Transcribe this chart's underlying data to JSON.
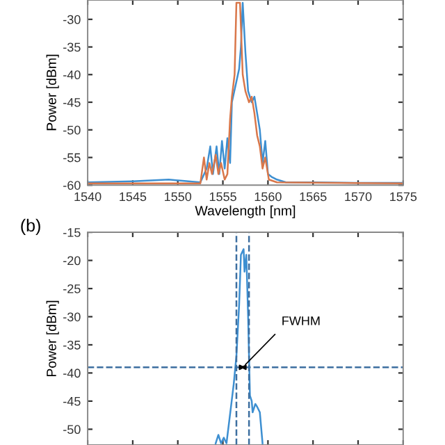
{
  "chart_data": [
    {
      "type": "line",
      "xlabel": "Wavelength [nm]",
      "ylabel": "Power [dBm]",
      "xlim": [
        1540,
        1575
      ],
      "ylim": [
        -60,
        -26.5
      ],
      "xticks": [
        1540,
        1545,
        1550,
        1555,
        1560,
        1565,
        1570,
        1575
      ],
      "yticks": [
        -60,
        -55,
        -50,
        -45,
        -40,
        -35,
        -30
      ],
      "grid": false,
      "legend": false,
      "series": [
        {
          "color": "#3d8fd1",
          "x": [
            1540,
            1545,
            1549,
            1552.5,
            1553.2,
            1553.6,
            1553.9,
            1554.3,
            1554.6,
            1554.9,
            1555.2,
            1555.5,
            1555.8,
            1556.0,
            1556.4,
            1556.8,
            1557.0,
            1557.2,
            1557.5,
            1557.8,
            1558.2,
            1558.5,
            1558.8,
            1559.1,
            1559.4,
            1559.7,
            1560.0,
            1560.4,
            1561,
            1562,
            1565,
            1570,
            1575
          ],
          "values": [
            -59.5,
            -59.3,
            -59,
            -59.5,
            -57,
            -53,
            -58,
            -53,
            -58,
            -52,
            -57,
            -51.5,
            -56,
            -45,
            -42,
            -39,
            -35,
            -27,
            -36,
            -43,
            -45,
            -44,
            -47,
            -50,
            -56,
            -52,
            -58,
            -58.5,
            -59,
            -59.5,
            -59.5,
            -59.6,
            -59.6
          ]
        },
        {
          "color": "#d9774a",
          "x": [
            1540,
            1552.5,
            1552.9,
            1553.2,
            1553.5,
            1553.8,
            1554.2,
            1554.5,
            1554.8,
            1555.2,
            1555.5,
            1555.8,
            1556.0,
            1556.3,
            1556.5,
            1556.9,
            1557.2,
            1557.5,
            1557.9,
            1558.2,
            1558.5,
            1558.8,
            1559.1,
            1559.4,
            1559.7,
            1560.1,
            1561,
            1575
          ],
          "values": [
            -59.7,
            -59.7,
            -55,
            -59,
            -56,
            -58,
            -54.5,
            -58,
            -56,
            -59,
            -58,
            -48,
            -44,
            -40,
            -27,
            -27,
            -40,
            -43,
            -45,
            -44,
            -47,
            -51,
            -53,
            -57,
            -55,
            -59,
            -59.5,
            -59.7
          ]
        }
      ]
    },
    {
      "type": "line",
      "ylabel": "Power [dBm]",
      "xlim": [
        1540,
        1575
      ],
      "ylim": [
        -52.8,
        -15
      ],
      "xticks": [
        1540,
        1545,
        1550,
        1555,
        1560,
        1565,
        1570,
        1575
      ],
      "yticks": [
        -50,
        -45,
        -40,
        -35,
        -30,
        -25,
        -20,
        -15
      ],
      "tick_labels": "y",
      "grid": false,
      "legend": false,
      "annotations": [
        "(b)",
        {
          "text": "FWHM",
          "x": 1557.2,
          "y": -39
        }
      ],
      "ref_lines": [
        {
          "axis": "y",
          "value": -39,
          "line_style": "dashed",
          "color": "#3d6fa0"
        },
        {
          "axis": "x",
          "value": 1556.5,
          "line_style": "dashed",
          "color": "#3d6fa0"
        },
        {
          "axis": "x",
          "value": 1557.9,
          "line_style": "dashed",
          "color": "#3d6fa0"
        }
      ],
      "series": [
        {
          "color": "#3d8fd1",
          "x": [
            1554.2,
            1554.5,
            1554.8,
            1555.1,
            1555.4,
            1555.9,
            1556.2,
            1556.5,
            1556.8,
            1557.0,
            1557.3,
            1557.4,
            1557.6,
            1557.8,
            1558.0,
            1558.2,
            1558.3,
            1558.6,
            1558.8,
            1559.1,
            1559.4
          ],
          "values": [
            -52.5,
            -51,
            -52.5,
            -51.5,
            -52.5,
            -46,
            -42,
            -37,
            -28,
            -19,
            -18,
            -22,
            -19,
            -30,
            -44,
            -45,
            -47,
            -45.5,
            -46,
            -47,
            -52.5
          ]
        }
      ]
    }
  ]
}
